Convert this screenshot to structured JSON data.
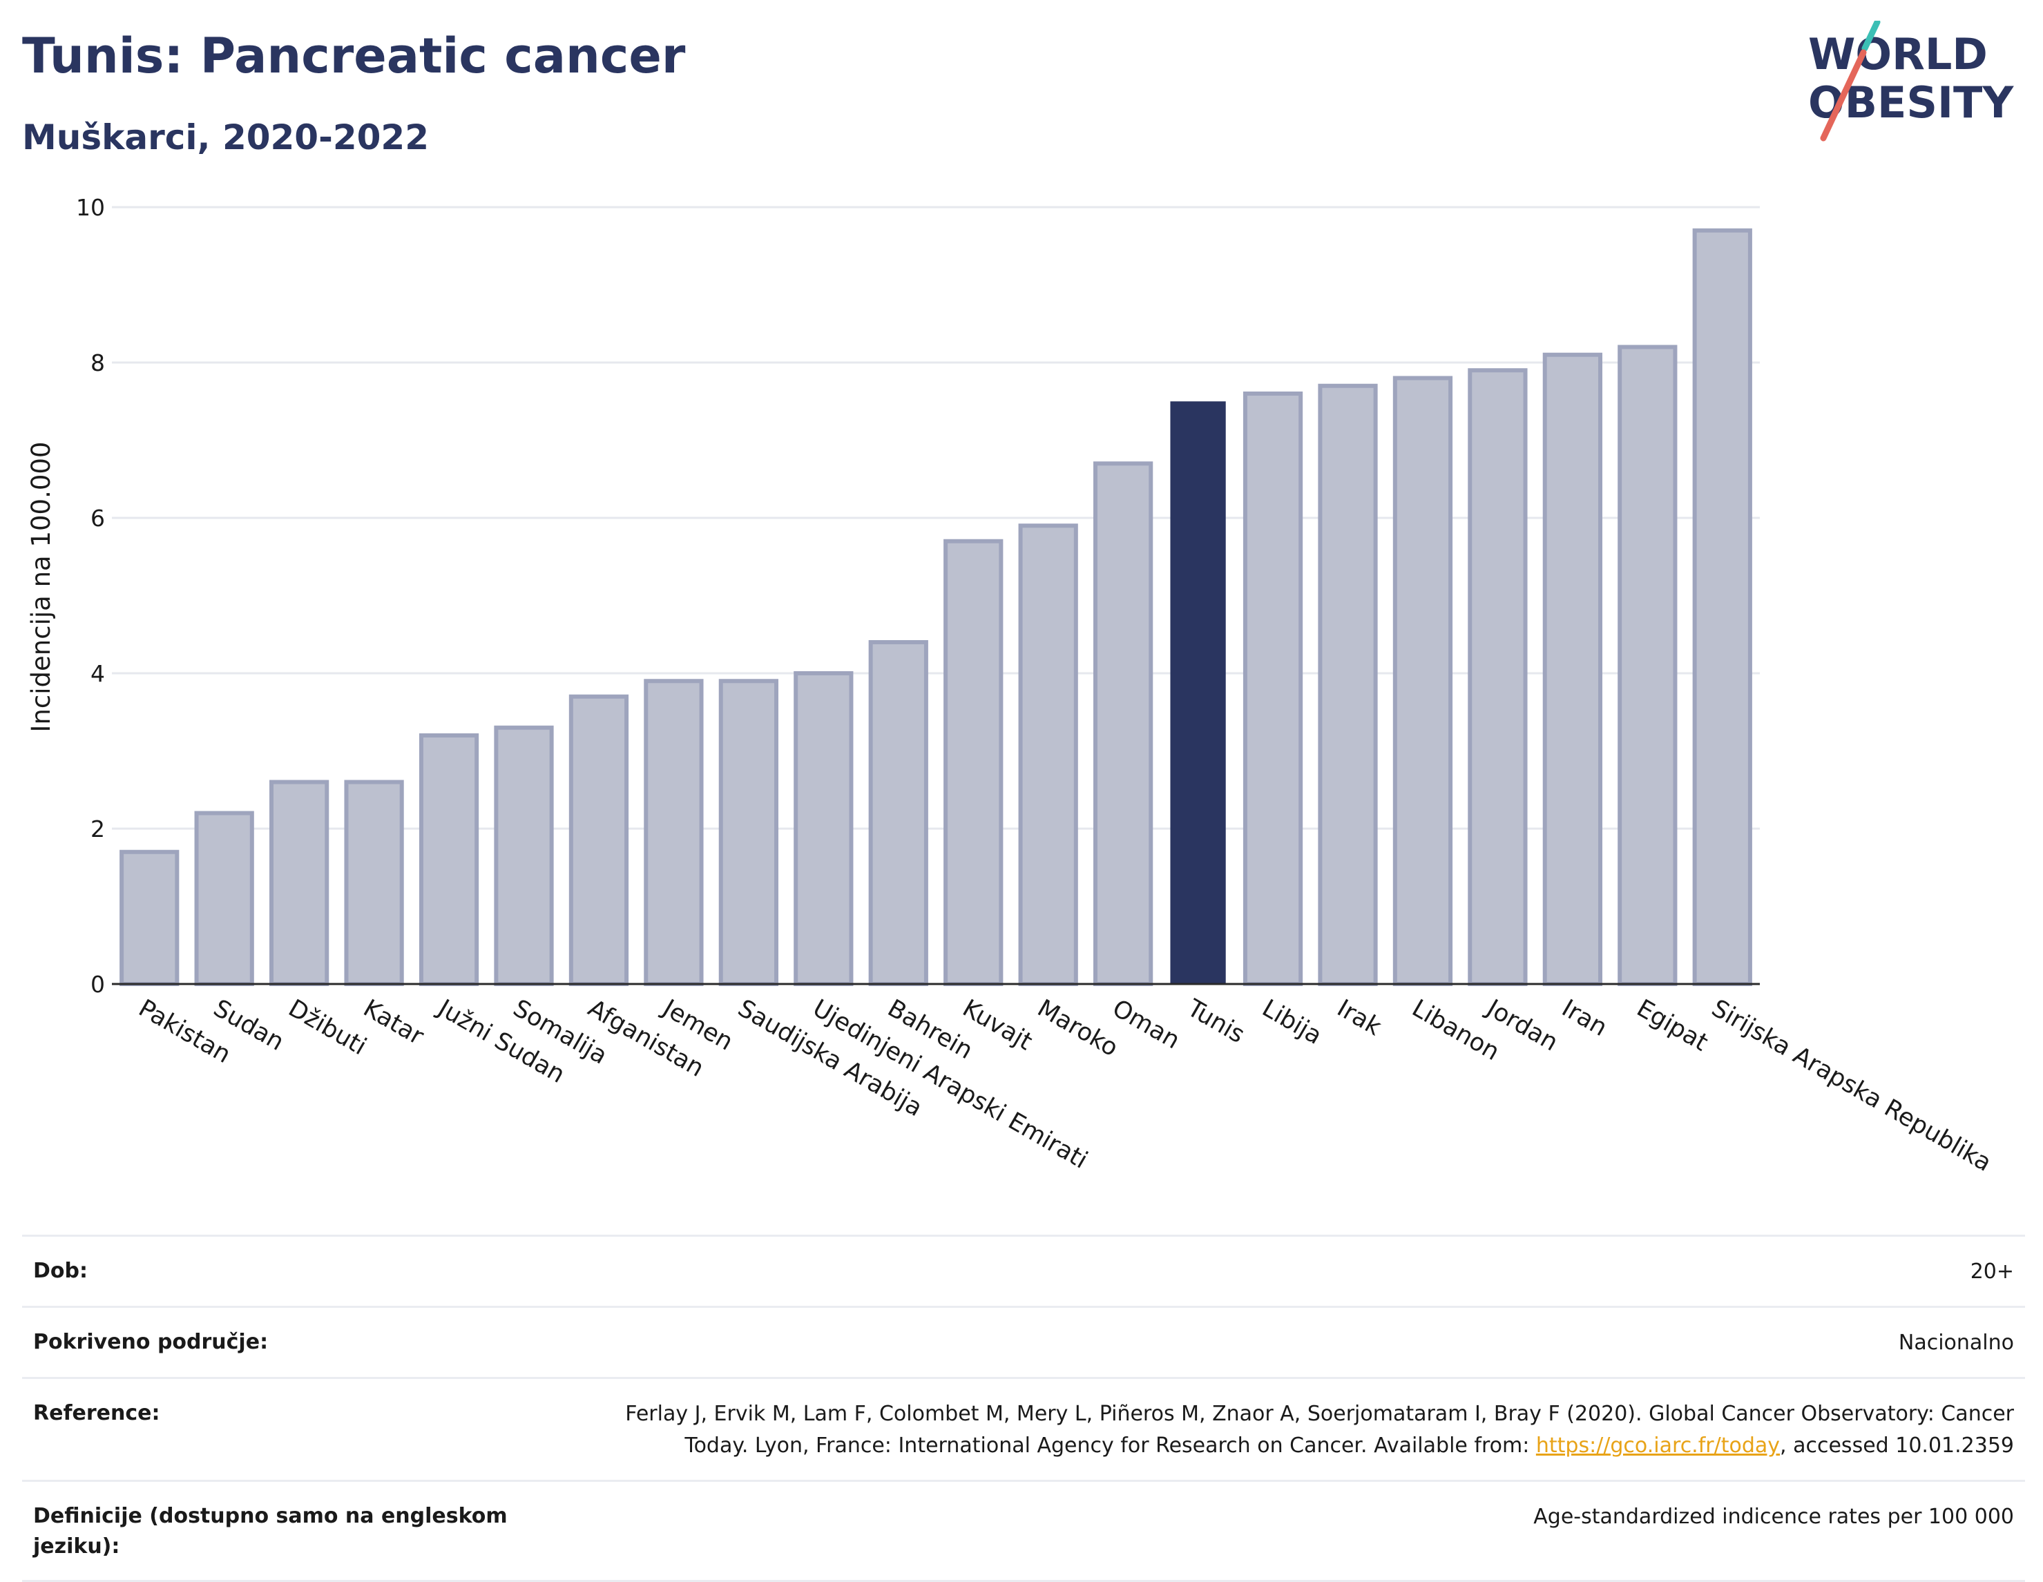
{
  "header": {
    "title": "Tunis: Pancreatic cancer",
    "subtitle": "Muškarci, 2020-2022"
  },
  "logo": {
    "line1": "WORLD",
    "line2": "OBESITY",
    "colors": {
      "text": "#2a3560",
      "accent_teal": "#3bbfb5",
      "accent_red": "#e4665a"
    }
  },
  "chart_data": {
    "type": "bar",
    "title": "",
    "xlabel": "",
    "ylabel": "Incidencija na 100.000",
    "ylim": [
      0,
      10
    ],
    "yticks": [
      0,
      2,
      4,
      6,
      8,
      10
    ],
    "grid": true,
    "highlight": "Tunis",
    "colors": {
      "bar": "#bcc0cf",
      "bar_border": "#9ea4bd",
      "highlight": "#2a3560",
      "grid": "#e6e8ee",
      "axis": "#2a2a2a"
    },
    "categories": [
      "Pakistan",
      "Sudan",
      "Džibuti",
      "Katar",
      "Južni Sudan",
      "Somalija",
      "Afganistan",
      "Jemen",
      "Saudijska Arabija",
      "Ujedinjeni Arapski Emirati",
      "Bahrein",
      "Kuvajt",
      "Maroko",
      "Oman",
      "Tunis",
      "Libija",
      "Irak",
      "Libanon",
      "Jordan",
      "Iran",
      "Egipat",
      "Sirijska Arapska Republika"
    ],
    "values": [
      1.7,
      2.2,
      2.6,
      2.6,
      3.2,
      3.3,
      3.7,
      3.9,
      3.9,
      4.0,
      4.4,
      5.7,
      5.9,
      6.7,
      7.5,
      7.6,
      7.7,
      7.8,
      7.9,
      8.1,
      8.2,
      9.7
    ]
  },
  "info": {
    "age_label": "Dob:",
    "age_value": "20+",
    "coverage_label": "Pokriveno područje:",
    "coverage_value": "Nacionalno",
    "reference_label": "Reference:",
    "reference_text1": "Ferlay J, Ervik M, Lam F, Colombet M, Mery L, Piñeros M, Znaor A, Soerjomataram I, Bray F (2020). Global Cancer Observatory: Cancer",
    "reference_text2": "Today. Lyon, France: International Agency for Research on Cancer. Available from: ",
    "reference_link": "https://gco.iarc.fr/today",
    "reference_text3": ", accessed 10.01.2359",
    "definitions_label": "Definicije (dostupno samo na engleskom jeziku):",
    "definitions_value": "Age-standardized indicence rates per 100 000"
  }
}
